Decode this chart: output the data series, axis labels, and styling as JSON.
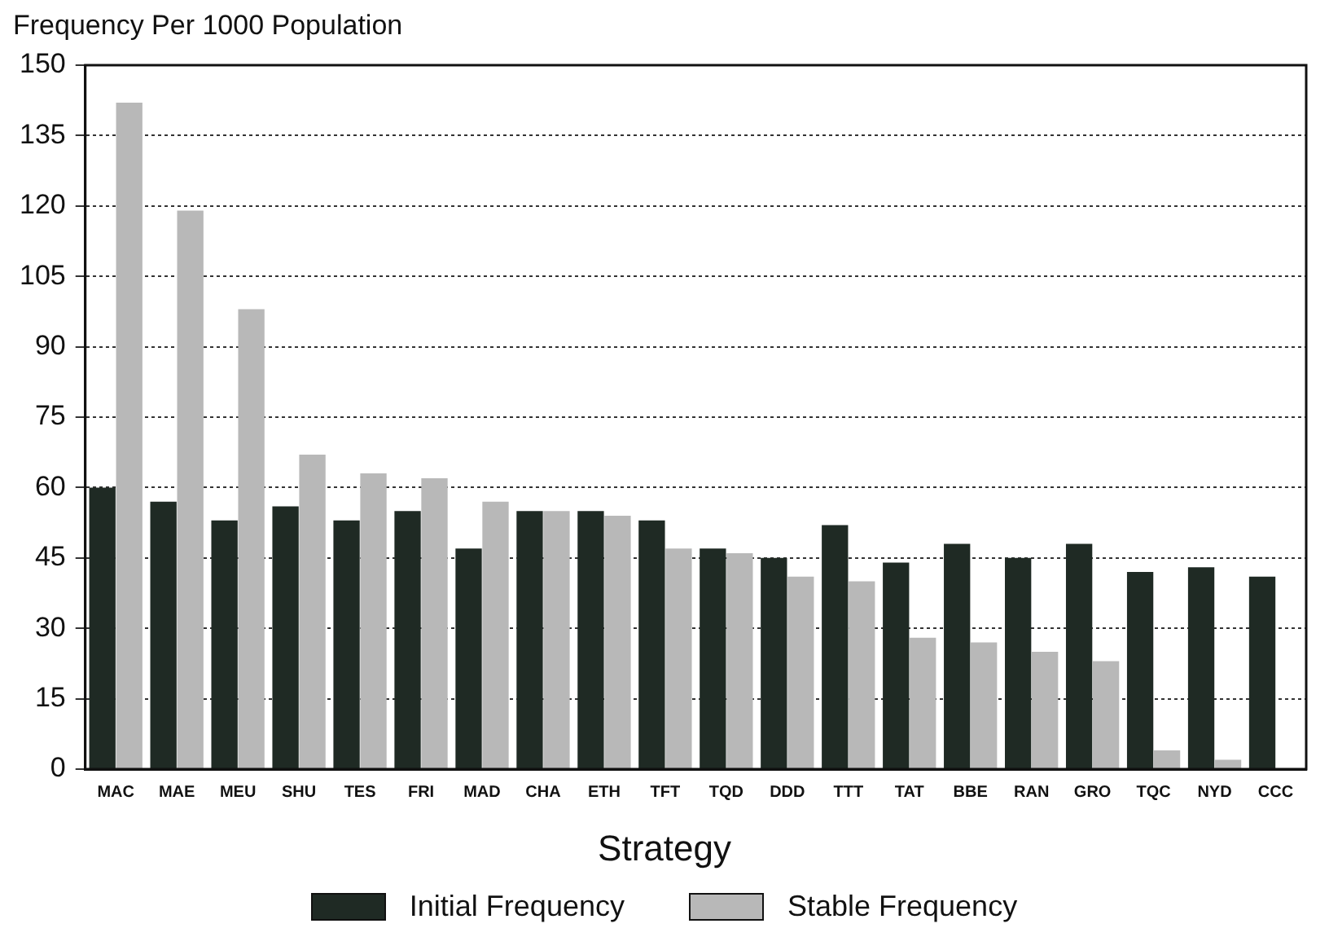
{
  "chart_data": {
    "type": "bar",
    "ylabel": "Frequency Per 1000 Population",
    "xlabel": "Strategy",
    "categories": [
      "MAC",
      "MAE",
      "MEU",
      "SHU",
      "TES",
      "FRI",
      "MAD",
      "CHA",
      "ETH",
      "TFT",
      "TQD",
      "DDD",
      "TTT",
      "TAT",
      "BBE",
      "RAN",
      "GRO",
      "TQC",
      "NYD",
      "CCC"
    ],
    "series": [
      {
        "name": "Initial Frequency",
        "color": "#1f2a24",
        "values": [
          60,
          57,
          53,
          56,
          53,
          55,
          47,
          55,
          55,
          53,
          47,
          45,
          52,
          44,
          48,
          45,
          48,
          42,
          43,
          41
        ]
      },
      {
        "name": "Stable Frequency",
        "color": "#b8b8b8",
        "values": [
          142,
          119,
          98,
          67,
          63,
          62,
          57,
          55,
          54,
          47,
          46,
          41,
          40,
          28,
          27,
          25,
          23,
          4,
          2,
          0
        ]
      }
    ],
    "ylim": [
      0,
      150
    ],
    "yticks": [
      0,
      15,
      30,
      45,
      60,
      75,
      90,
      105,
      120,
      135,
      150
    ],
    "grid": "y",
    "line_style": "dotted",
    "legend": "bottom"
  }
}
